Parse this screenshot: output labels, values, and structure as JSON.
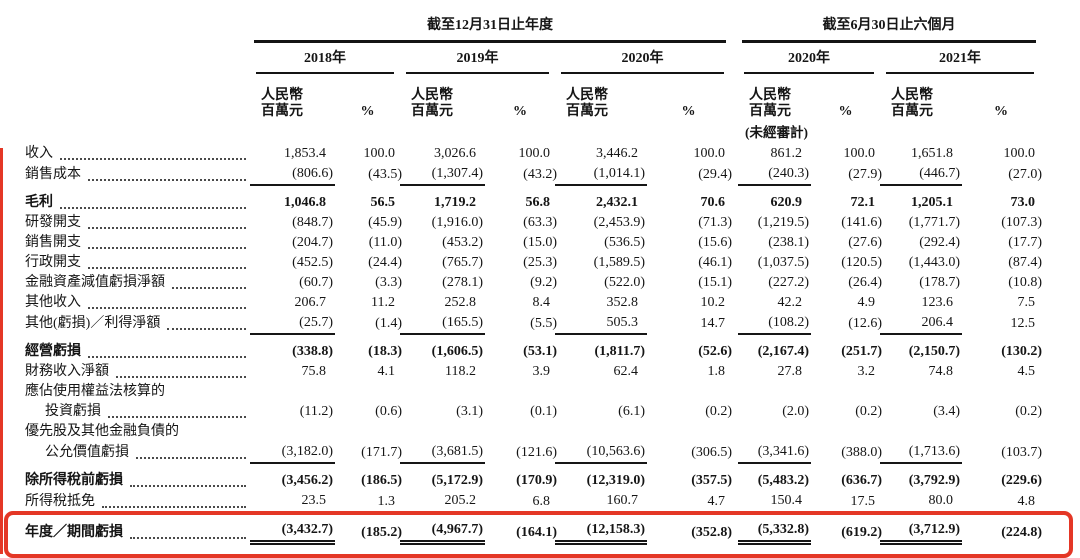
{
  "document": {
    "colors": {
      "highlight_red": "#e43726",
      "text": "#151515"
    },
    "header": {
      "annual_title": "截至12月31日止年度",
      "interim_title": "截至6月30日止六個月",
      "year_groups": [
        {
          "label": "2018年"
        },
        {
          "label": "2019年"
        },
        {
          "label": "2020年"
        },
        {
          "label": "2020年"
        },
        {
          "label": "2021年"
        }
      ],
      "unit_line1": "人民幣",
      "unit_line2": "百萬元",
      "percent_label": "%",
      "unaudited_note": "(未經審計)"
    },
    "rows": [
      {
        "label": "收入",
        "leader": true,
        "values": [
          "1,853.4",
          "100.0",
          "3,026.6",
          "100.0",
          "3,446.2",
          "100.0",
          "861.2",
          "100.0",
          "1,651.8",
          "100.0"
        ]
      },
      {
        "label": "銷售成本",
        "leader": true,
        "underline": true,
        "values": [
          "(806.6)",
          "(43.5)",
          "(1,307.4)",
          "(43.2)",
          "(1,014.1)",
          "(29.4)",
          "(240.3)",
          "(27.9)",
          "(446.7)",
          "(27.0)"
        ]
      },
      {
        "label": "毛利",
        "leader": true,
        "bold": true,
        "spacer_before": true,
        "values": [
          "1,046.8",
          "56.5",
          "1,719.2",
          "56.8",
          "2,432.1",
          "70.6",
          "620.9",
          "72.1",
          "1,205.1",
          "73.0"
        ]
      },
      {
        "label": "研發開支",
        "leader": true,
        "values": [
          "(848.7)",
          "(45.9)",
          "(1,916.0)",
          "(63.3)",
          "(2,453.9)",
          "(71.3)",
          "(1,219.5)",
          "(141.6)",
          "(1,771.7)",
          "(107.3)"
        ]
      },
      {
        "label": "銷售開支",
        "leader": true,
        "values": [
          "(204.7)",
          "(11.0)",
          "(453.2)",
          "(15.0)",
          "(536.5)",
          "(15.6)",
          "(238.1)",
          "(27.6)",
          "(292.4)",
          "(17.7)"
        ]
      },
      {
        "label": "行政開支",
        "leader": true,
        "values": [
          "(452.5)",
          "(24.4)",
          "(765.7)",
          "(25.3)",
          "(1,589.5)",
          "(46.1)",
          "(1,037.5)",
          "(120.5)",
          "(1,443.0)",
          "(87.4)"
        ]
      },
      {
        "label": "金融資產減值虧損淨額",
        "leader": true,
        "values": [
          "(60.7)",
          "(3.3)",
          "(278.1)",
          "(9.2)",
          "(522.0)",
          "(15.1)",
          "(227.2)",
          "(26.4)",
          "(178.7)",
          "(10.8)"
        ]
      },
      {
        "label": "其他收入",
        "leader": true,
        "values": [
          "206.7",
          "11.2",
          "252.8",
          "8.4",
          "352.8",
          "10.2",
          "42.2",
          "4.9",
          "123.6",
          "7.5"
        ]
      },
      {
        "label": "其他(虧損)／利得淨額",
        "leader": true,
        "underline": true,
        "values": [
          "(25.7)",
          "(1.4)",
          "(165.5)",
          "(5.5)",
          "505.3",
          "14.7",
          "(108.2)",
          "(12.6)",
          "206.4",
          "12.5"
        ]
      },
      {
        "label": "經營虧損",
        "leader": true,
        "bold": true,
        "spacer_before": true,
        "values": [
          "(338.8)",
          "(18.3)",
          "(1,606.5)",
          "(53.1)",
          "(1,811.7)",
          "(52.6)",
          "(2,167.4)",
          "(251.7)",
          "(2,150.7)",
          "(130.2)"
        ]
      },
      {
        "label": "財務收入淨額",
        "leader": true,
        "values": [
          "75.8",
          "4.1",
          "118.2",
          "3.9",
          "62.4",
          "1.8",
          "27.8",
          "3.2",
          "74.8",
          "4.5"
        ]
      },
      {
        "label": "應佔使用權益法核算的",
        "leader": false,
        "values": null
      },
      {
        "label": "投資虧損",
        "leader": true,
        "indent": true,
        "values": [
          "(11.2)",
          "(0.6)",
          "(3.1)",
          "(0.1)",
          "(6.1)",
          "(0.2)",
          "(2.0)",
          "(0.2)",
          "(3.4)",
          "(0.2)"
        ]
      },
      {
        "label": "優先股及其他金融負債的",
        "leader": false,
        "values": null
      },
      {
        "label": "公允價值虧損",
        "leader": true,
        "indent": true,
        "underline": true,
        "values": [
          "(3,182.0)",
          "(171.7)",
          "(3,681.5)",
          "(121.6)",
          "(10,563.6)",
          "(306.5)",
          "(3,341.6)",
          "(388.0)",
          "(1,713.6)",
          "(103.7)"
        ]
      },
      {
        "label": "除所得稅前虧損",
        "leader": true,
        "bold": true,
        "spacer_before": true,
        "values": [
          "(3,456.2)",
          "(186.5)",
          "(5,172.9)",
          "(170.9)",
          "(12,319.0)",
          "(357.5)",
          "(5,483.2)",
          "(636.7)",
          "(3,792.9)",
          "(229.6)"
        ]
      },
      {
        "label": "所得稅抵免",
        "leader": true,
        "underline": true,
        "values": [
          "23.5",
          "1.3",
          "205.2",
          "6.8",
          "160.7",
          "4.7",
          "150.4",
          "17.5",
          "80.0",
          "4.8"
        ]
      },
      {
        "label": "年度／期間虧損",
        "leader": true,
        "bold": true,
        "spacer_before": true,
        "double_underline": true,
        "highlight": true,
        "values": [
          "(3,432.7)",
          "(185.2)",
          "(4,967.7)",
          "(164.1)",
          "(12,158.3)",
          "(352.8)",
          "(5,332.8)",
          "(619.2)",
          "(3,712.9)",
          "(224.8)"
        ]
      }
    ]
  }
}
